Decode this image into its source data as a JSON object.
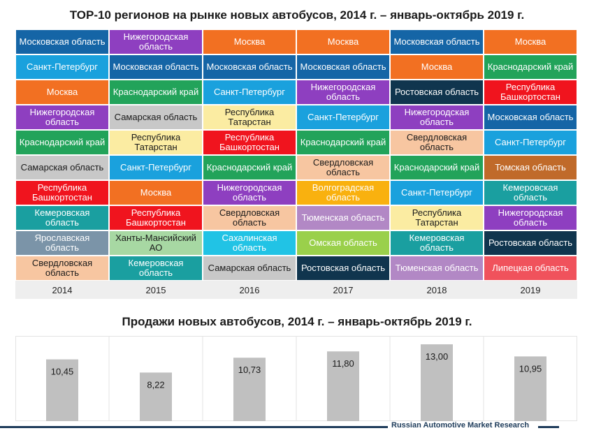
{
  "titles": {
    "top": "TOP-10 регионов на рынке новых автобусов, 2014 г. – январь-октябрь 2019 г.",
    "sales": "Продажи новых автобусов, 2014 г. – январь-октябрь 2019 г."
  },
  "footer": "Russian Automotive Market Research",
  "region_colors": {
    "Московская область": "#1565a6",
    "Нижегородская область": "#8e3fc0",
    "Москва": "#f27022",
    "Санкт-Петербург": "#1aa1dd",
    "Краснодарский край": "#22a35a",
    "Самарская область": "#c8c8c8",
    "Республика Татарстан": "#fbeca2",
    "Республика Башкортостан": "#f0141e",
    "Ростовская область": "#10354e",
    "Свердловская область": "#f7c6a1",
    "Томская область": "#c06a2a",
    "Кемеровская область": "#1a9fa0",
    "Волгоградская область": "#f9b10f",
    "Тюменская область": "#b288c5",
    "Ярославская область": "#7b94a8",
    "Ханты-Мансийский АО": "#a7d8a3",
    "Сахалинская область": "#21c3e5",
    "Омская область": "#9ad04b",
    "Липецкая область": "#f0525c"
  },
  "dark_text_regions": [
    "Самарская область",
    "Республика Татарстан",
    "Свердловская область",
    "Ханты-Мансийский АО"
  ],
  "chart_data": [
    {
      "type": "table",
      "title": "TOP-10 регионов на рынке новых автобусов, 2014 г. – январь-октябрь 2019 г.",
      "columns": [
        "2014",
        "2015",
        "2016",
        "2017",
        "2018",
        "2019"
      ],
      "rankings": [
        [
          "Московская область",
          "Санкт-Петербург",
          "Москва",
          "Нижегородская область",
          "Краснодарский край",
          "Самарская область",
          "Республика Башкортостан",
          "Кемеровская область",
          "Ярославская область",
          "Свердловская область"
        ],
        [
          "Нижегородская область",
          "Московская область",
          "Краснодарский край",
          "Самарская область",
          "Республика Татарстан",
          "Санкт-Петербург",
          "Москва",
          "Республика Башкортостан",
          "Ханты-Мансийский АО",
          "Кемеровская область"
        ],
        [
          "Москва",
          "Московская область",
          "Санкт-Петербург",
          "Республика Татарстан",
          "Республика Башкортостан",
          "Краснодарский край",
          "Нижегородская область",
          "Свердловская область",
          "Сахалинская область",
          "Самарская область"
        ],
        [
          "Москва",
          "Московская область",
          "Нижегородская область",
          "Санкт-Петербург",
          "Краснодарский край",
          "Свердловская область",
          "Волгоградская область",
          "Тюменская область",
          "Омская область",
          "Ростовская область"
        ],
        [
          "Московская область",
          "Москва",
          "Ростовская область",
          "Нижегородская область",
          "Свердловская область",
          "Краснодарский край",
          "Санкт-Петербург",
          "Республика Татарстан",
          "Кемеровская область",
          "Тюменская область"
        ],
        [
          "Москва",
          "Краснодарский край",
          "Республика Башкортостан",
          "Московская область",
          "Санкт-Петербург",
          "Томская область",
          "Кемеровская область",
          "Нижегородская область",
          "Ростовская область",
          "Липецкая область"
        ]
      ]
    },
    {
      "type": "bar",
      "title": "Продажи новых автобусов, 2014 г. – январь-октябрь 2019 г.",
      "categories": [
        "2014",
        "2015",
        "2016",
        "2017",
        "2018",
        "2019"
      ],
      "values": [
        10.45,
        8.22,
        10.73,
        11.8,
        13.0,
        10.95
      ],
      "labels": [
        "10,45",
        "8,22",
        "10,73",
        "11,80",
        "13,00",
        "10,95"
      ],
      "bar_color": "#c0c0c0",
      "grid": false
    }
  ]
}
